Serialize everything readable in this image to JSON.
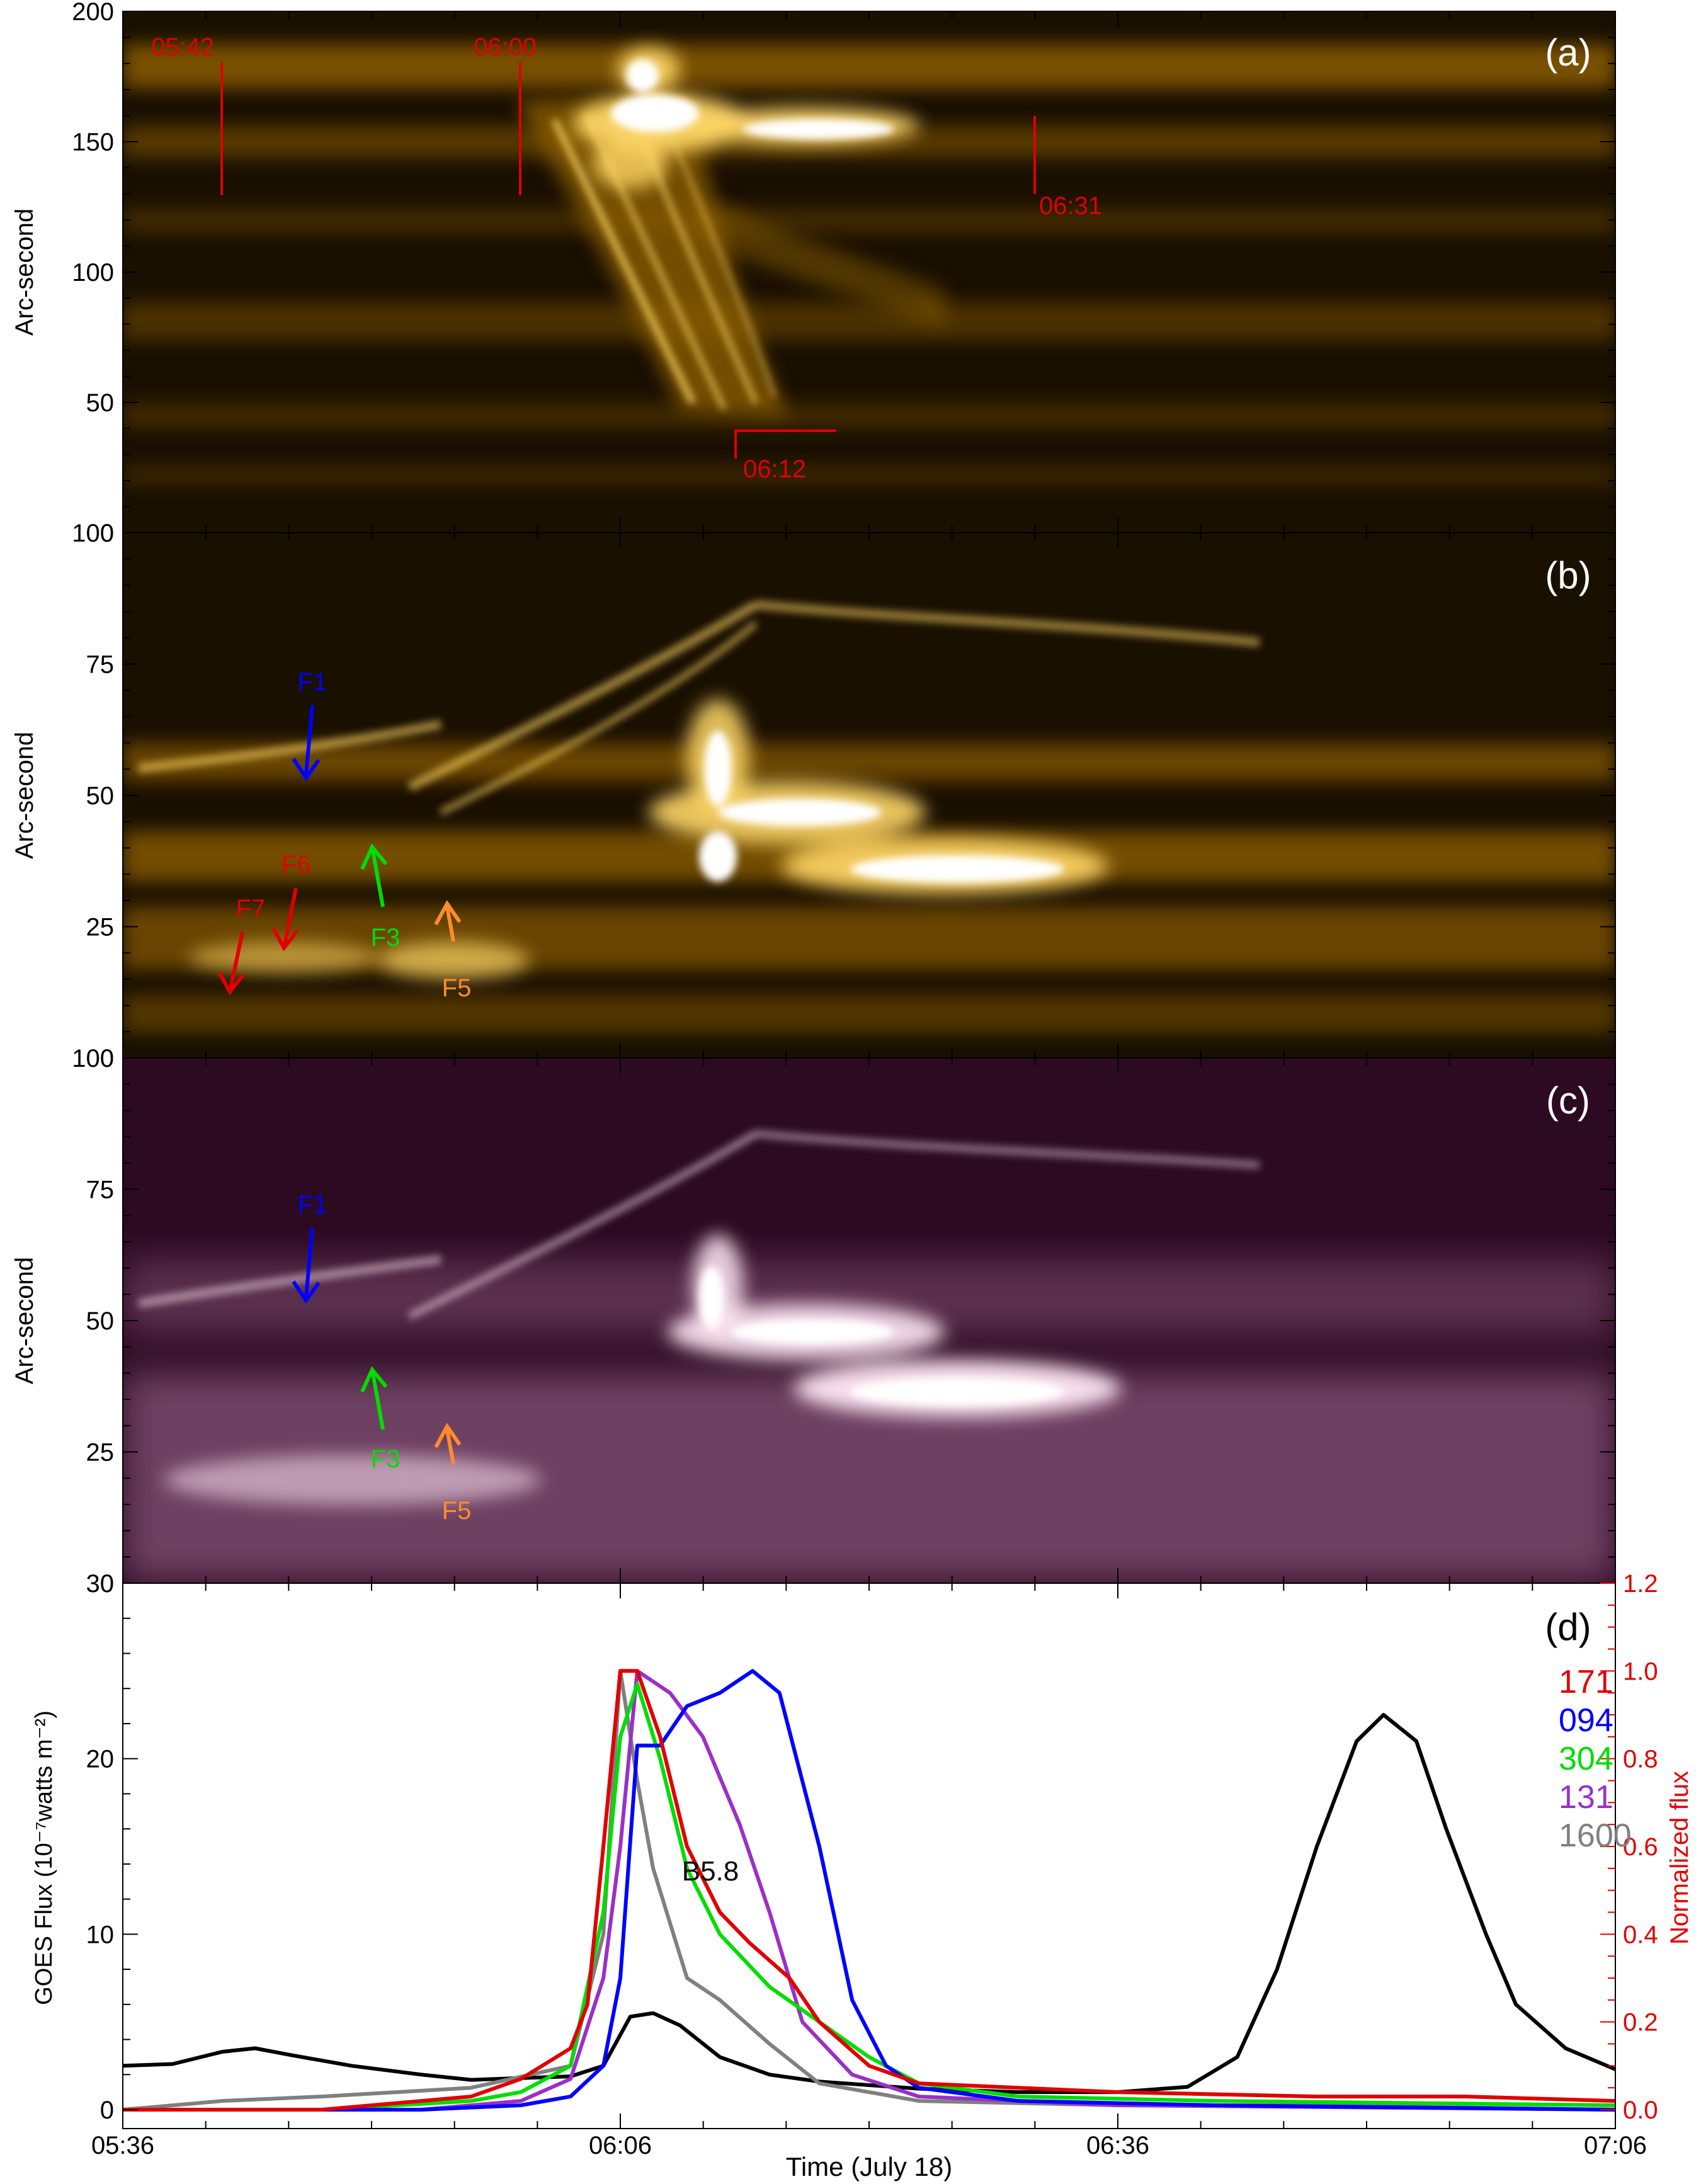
{
  "colors": {
    "p171_dark": "#1a1000",
    "p171_mid": "#8a5c00",
    "p171_bright": "#ffd766",
    "p304_dark": "#2c0a22",
    "p304_mid": "#7a4a6c",
    "p304_bright": "#ffe8f4",
    "red": "#e00000",
    "blue": "#0000ff",
    "green": "#00dd00",
    "purple": "#9a30c8",
    "gray": "#808080",
    "orange": "#ff8c2a",
    "black": "#000000"
  },
  "shared_x": {
    "label": "Time (July 18)",
    "ticks": [
      "05:36",
      "06:06",
      "06:36",
      "07:06"
    ]
  },
  "chart_data": [
    {
      "type": "heatmap",
      "panel_label": "(a)",
      "ylabel": "Arc-second",
      "ylim": [
        0,
        200
      ],
      "yticks": [
        "0",
        "50",
        "100",
        "150",
        "200"
      ],
      "colormap": "sdo-aia-171",
      "markers": [
        {
          "label": "05:42"
        },
        {
          "label": "06:00"
        },
        {
          "label": "06:31"
        },
        {
          "label": "06:12"
        }
      ]
    },
    {
      "type": "heatmap",
      "panel_label": "(b)",
      "ylabel": "Arc-second",
      "ylim": [
        0,
        100
      ],
      "yticks": [
        "0",
        "25",
        "50",
        "75",
        "100"
      ],
      "colormap": "sdo-aia-171",
      "arrows": [
        {
          "label": "F1",
          "color": "blue"
        },
        {
          "label": "F6",
          "color": "red"
        },
        {
          "label": "F7",
          "color": "red"
        },
        {
          "label": "F3",
          "color": "green"
        },
        {
          "label": "F5",
          "color": "orange"
        }
      ]
    },
    {
      "type": "heatmap",
      "panel_label": "(c)",
      "ylabel": "Arc-second",
      "ylim": [
        0,
        100
      ],
      "yticks": [
        "0",
        "25",
        "50",
        "75",
        "100"
      ],
      "colormap": "sdo-aia-304",
      "arrows": [
        {
          "label": "F1",
          "color": "blue"
        },
        {
          "label": "F3",
          "color": "green"
        },
        {
          "label": "F5",
          "color": "orange"
        }
      ]
    },
    {
      "type": "line",
      "panel_label": "(d)",
      "ylabel_left": "GOES Flux (10⁻⁷watts m⁻²)",
      "ylabel_right": "Normalized flux",
      "ylim_left": [
        0,
        30
      ],
      "ylim_right": [
        0,
        1.2
      ],
      "yticks_left": [
        "0",
        "10",
        "20",
        "30"
      ],
      "yticks_right": [
        "0.0",
        "0.2",
        "0.4",
        "0.6",
        "0.8",
        "1.0",
        "1.2"
      ],
      "annotation": "B5.8",
      "series": [
        {
          "name": "GOES",
          "color": "black",
          "axis": "left",
          "points": [
            [
              5.6,
              2.5
            ],
            [
              5.65,
              2.6
            ],
            [
              5.7,
              3.3
            ],
            [
              5.733,
              3.5
            ],
            [
              5.77,
              3.1
            ],
            [
              5.83,
              2.5
            ],
            [
              5.9,
              2.0
            ],
            [
              5.95,
              1.7
            ],
            [
              6.0,
              1.8
            ],
            [
              6.05,
              1.9
            ],
            [
              6.083,
              2.5
            ],
            [
              6.11,
              5.3
            ],
            [
              6.133,
              5.5
            ],
            [
              6.16,
              4.8
            ],
            [
              6.2,
              3.0
            ],
            [
              6.25,
              2.0
            ],
            [
              6.3,
              1.6
            ],
            [
              6.4,
              1.2
            ],
            [
              6.5,
              1.0
            ],
            [
              6.6,
              1.0
            ],
            [
              6.67,
              1.3
            ],
            [
              6.72,
              3.0
            ],
            [
              6.76,
              8.0
            ],
            [
              6.8,
              15.0
            ],
            [
              6.84,
              21.0
            ],
            [
              6.867,
              22.5
            ],
            [
              6.9,
              21.0
            ],
            [
              6.93,
              16.0
            ],
            [
              6.97,
              10.0
            ],
            [
              7.0,
              6.0
            ],
            [
              7.05,
              3.5
            ],
            [
              7.1,
              2.3
            ]
          ]
        },
        {
          "name": "171",
          "color": "red",
          "axis": "right",
          "points": [
            [
              5.6,
              0.0
            ],
            [
              5.8,
              0.0
            ],
            [
              5.95,
              0.03
            ],
            [
              6.0,
              0.07
            ],
            [
              6.05,
              0.14
            ],
            [
              6.067,
              0.24
            ],
            [
              6.083,
              0.6
            ],
            [
              6.1,
              1.0
            ],
            [
              6.117,
              1.0
            ],
            [
              6.14,
              0.85
            ],
            [
              6.167,
              0.6
            ],
            [
              6.2,
              0.45
            ],
            [
              6.23,
              0.38
            ],
            [
              6.27,
              0.3
            ],
            [
              6.3,
              0.2
            ],
            [
              6.35,
              0.1
            ],
            [
              6.4,
              0.06
            ],
            [
              6.5,
              0.05
            ],
            [
              6.6,
              0.04
            ],
            [
              6.8,
              0.03
            ],
            [
              6.95,
              0.03
            ],
            [
              7.1,
              0.02
            ]
          ]
        },
        {
          "name": "094",
          "color": "blue",
          "axis": "right",
          "points": [
            [
              5.6,
              0.0
            ],
            [
              5.9,
              0.0
            ],
            [
              6.0,
              0.01
            ],
            [
              6.05,
              0.03
            ],
            [
              6.083,
              0.1
            ],
            [
              6.1,
              0.3
            ],
            [
              6.117,
              0.83
            ],
            [
              6.14,
              0.83
            ],
            [
              6.167,
              0.92
            ],
            [
              6.2,
              0.95
            ],
            [
              6.233,
              1.0
            ],
            [
              6.26,
              0.95
            ],
            [
              6.3,
              0.6
            ],
            [
              6.333,
              0.25
            ],
            [
              6.367,
              0.1
            ],
            [
              6.4,
              0.05
            ],
            [
              6.5,
              0.02
            ],
            [
              6.7,
              0.01
            ],
            [
              7.1,
              0.0
            ]
          ]
        },
        {
          "name": "304",
          "color": "green",
          "axis": "right",
          "points": [
            [
              5.6,
              0.0
            ],
            [
              5.8,
              0.0
            ],
            [
              5.95,
              0.02
            ],
            [
              6.0,
              0.04
            ],
            [
              6.05,
              0.1
            ],
            [
              6.083,
              0.45
            ],
            [
              6.1,
              0.85
            ],
            [
              6.117,
              0.97
            ],
            [
              6.14,
              0.8
            ],
            [
              6.167,
              0.55
            ],
            [
              6.2,
              0.4
            ],
            [
              6.25,
              0.28
            ],
            [
              6.3,
              0.2
            ],
            [
              6.35,
              0.12
            ],
            [
              6.4,
              0.06
            ],
            [
              6.5,
              0.03
            ],
            [
              6.7,
              0.02
            ],
            [
              7.1,
              0.01
            ]
          ]
        },
        {
          "name": "131",
          "color": "purple",
          "axis": "right",
          "points": [
            [
              5.6,
              0.0
            ],
            [
              5.9,
              0.0
            ],
            [
              6.0,
              0.02
            ],
            [
              6.05,
              0.07
            ],
            [
              6.083,
              0.3
            ],
            [
              6.1,
              0.6
            ],
            [
              6.117,
              1.0
            ],
            [
              6.15,
              0.95
            ],
            [
              6.183,
              0.85
            ],
            [
              6.22,
              0.65
            ],
            [
              6.25,
              0.45
            ],
            [
              6.283,
              0.2
            ],
            [
              6.333,
              0.08
            ],
            [
              6.4,
              0.03
            ],
            [
              6.6,
              0.01
            ],
            [
              7.1,
              0.0
            ]
          ]
        },
        {
          "name": "1600",
          "color": "gray",
          "axis": "right",
          "points": [
            [
              5.6,
              0.0
            ],
            [
              5.7,
              0.02
            ],
            [
              5.8,
              0.03
            ],
            [
              5.95,
              0.05
            ],
            [
              6.05,
              0.1
            ],
            [
              6.083,
              0.4
            ],
            [
              6.1,
              1.0
            ],
            [
              6.117,
              0.75
            ],
            [
              6.133,
              0.55
            ],
            [
              6.167,
              0.3
            ],
            [
              6.2,
              0.25
            ],
            [
              6.25,
              0.15
            ],
            [
              6.3,
              0.06
            ],
            [
              6.4,
              0.02
            ],
            [
              6.6,
              0.01
            ],
            [
              6.8,
              0.01
            ],
            [
              7.1,
              0.0
            ]
          ]
        }
      ]
    }
  ]
}
